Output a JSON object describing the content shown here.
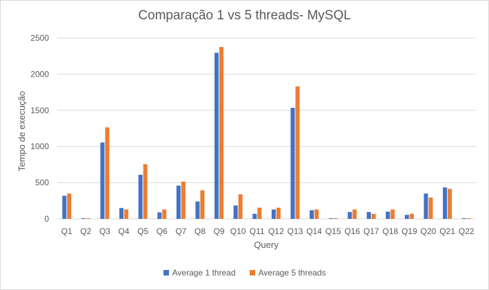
{
  "chart_data": {
    "type": "bar",
    "title": "Comparação 1 vs 5 threads- MySQL",
    "xlabel": "Query",
    "ylabel": "Tempo de execução",
    "ylim": [
      0,
      2500
    ],
    "yticks": [
      0,
      500,
      1000,
      1500,
      2000,
      2500
    ],
    "grid": true,
    "legend_position": "bottom",
    "categories": [
      "Q1",
      "Q2",
      "Q3",
      "Q4",
      "Q5",
      "Q6",
      "Q7",
      "Q8",
      "Q9",
      "Q10",
      "Q11",
      "Q12",
      "Q13",
      "Q14",
      "Q15",
      "Q16",
      "Q17",
      "Q18",
      "Q19",
      "Q20",
      "Q21",
      "Q22"
    ],
    "series": [
      {
        "name": "Average 1 thread",
        "color": "#4472C4",
        "values": [
          320,
          10,
          1055,
          150,
          610,
          90,
          460,
          240,
          2295,
          185,
          70,
          130,
          1535,
          120,
          10,
          95,
          95,
          100,
          55,
          350,
          435,
          10
        ]
      },
      {
        "name": "Average 5 threads",
        "color": "#ED7D31",
        "values": [
          350,
          10,
          1265,
          130,
          755,
          130,
          515,
          395,
          2375,
          340,
          155,
          155,
          1830,
          130,
          10,
          130,
          70,
          130,
          70,
          295,
          415,
          10
        ]
      }
    ]
  }
}
